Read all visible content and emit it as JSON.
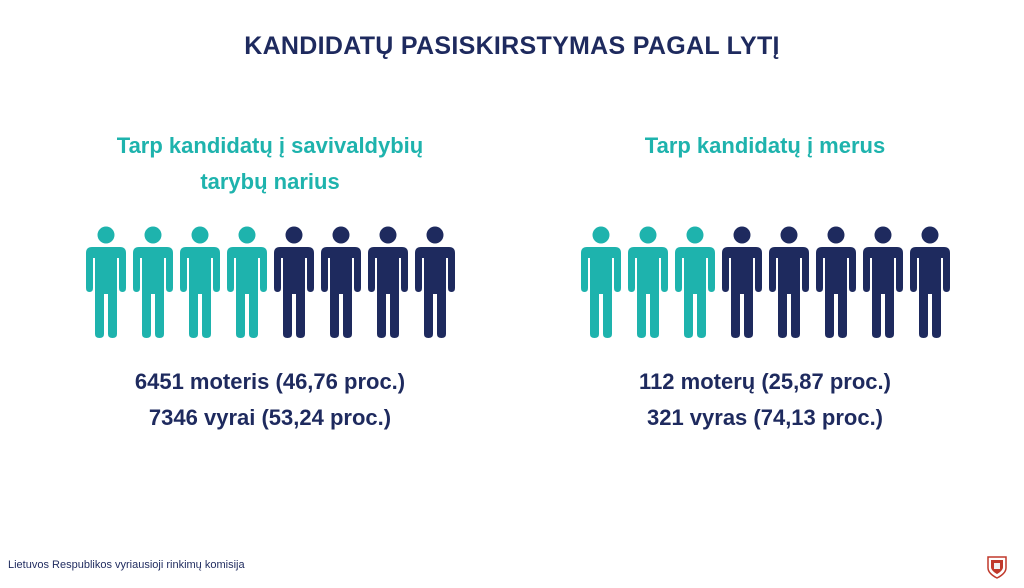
{
  "title": "KANDIDATŲ PASISKIRSTYMAS PAGAL LYTĮ",
  "colors": {
    "female": "#1eb3ad",
    "male": "#1e2a5e"
  },
  "footer": "Lietuvos Respublikos vyriausioji rinkimų komisija",
  "logo_icon": "coat-of-arms-icon",
  "chart_data": [
    {
      "type": "pictogram",
      "title": "Tarp kandidatų į savivaldybių tarybų narius",
      "title_lines": [
        "Tarp kandidatų į savivaldybių",
        "tarybų narius"
      ],
      "icons": [
        "female",
        "female",
        "female",
        "female",
        "male",
        "male",
        "male",
        "male"
      ],
      "series": [
        {
          "name": "moteris",
          "count": 6451,
          "percent": 46.76,
          "label": "6451 moteris (46,76 proc.)"
        },
        {
          "name": "vyrai",
          "count": 7346,
          "percent": 53.24,
          "label": "7346 vyrai (53,24 proc.)"
        }
      ]
    },
    {
      "type": "pictogram",
      "title": "Tarp kandidatų į merus",
      "title_lines": [
        "Tarp kandidatų į merus"
      ],
      "icons": [
        "female",
        "female",
        "female",
        "male",
        "male",
        "male",
        "male",
        "male"
      ],
      "series": [
        {
          "name": "moterų",
          "count": 112,
          "percent": 25.87,
          "label": "112 moterų (25,87 proc.)"
        },
        {
          "name": "vyras",
          "count": 321,
          "percent": 74.13,
          "label": "321 vyras (74,13 proc.)"
        }
      ]
    }
  ]
}
